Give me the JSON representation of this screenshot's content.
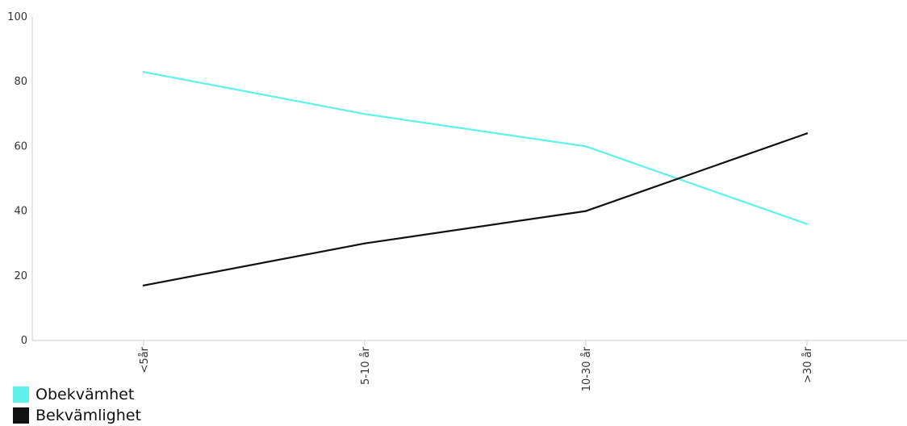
{
  "chart_data": {
    "type": "line",
    "categories": [
      "<5år",
      "5-10 år",
      "10-30 år",
      ">30 år"
    ],
    "series": [
      {
        "name": "Obekvämhet",
        "color": "#5ff2ea",
        "values": [
          83,
          70,
          60,
          36
        ]
      },
      {
        "name": "Bekvämlighet",
        "color": "#111111",
        "values": [
          17,
          30,
          40,
          64
        ]
      }
    ],
    "ylim": [
      0,
      100
    ],
    "yticks": [
      0,
      20,
      40,
      60,
      80,
      100
    ],
    "legend_position": "bottom-left",
    "grid": false
  }
}
